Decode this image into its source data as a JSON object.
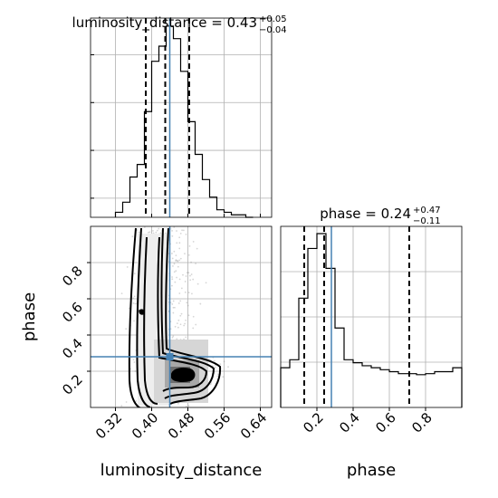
{
  "chart_data": {
    "type": "corner",
    "parameters": [
      "luminosity_distance",
      "phase"
    ],
    "truths": {
      "luminosity_distance": 0.44,
      "phase": 0.28
    },
    "luminosity_distance": {
      "title_main": "luminosity_distance = 0.43",
      "title_plus": "+0.05",
      "title_minus": "−0.04",
      "median": 0.43,
      "quantiles": [
        0.387,
        0.43,
        0.483
      ],
      "xlim": [
        0.265,
        0.665
      ],
      "ticks": [
        0.32,
        0.4,
        0.48,
        0.56,
        0.64
      ],
      "tick_labels": [
        "0.32",
        "0.40",
        "0.48",
        "0.56",
        "0.64"
      ],
      "axis_label": "luminosity_distance",
      "hist_bin_edges": [
        0.32,
        0.336,
        0.352,
        0.368,
        0.384,
        0.4,
        0.416,
        0.432,
        0.448,
        0.464,
        0.48,
        0.496,
        0.512,
        0.528,
        0.544,
        0.56,
        0.576,
        0.592,
        0.608,
        0.624
      ],
      "hist_values": [
        2,
        6,
        16,
        21,
        42,
        62,
        68,
        76,
        71,
        58,
        38,
        25,
        15,
        8,
        3,
        2,
        1,
        1,
        0
      ]
    },
    "phase": {
      "title_main": "phase = 0.24",
      "title_plus": "+0.47",
      "title_minus": "−0.11",
      "median": 0.24,
      "quantiles": [
        0.13,
        0.24,
        0.71
      ],
      "xlim": [
        0.0,
        1.0
      ],
      "ticks": [
        0.2,
        0.4,
        0.6,
        0.8
      ],
      "tick_labels": [
        "0.2",
        "0.4",
        "0.6",
        "0.8"
      ],
      "axis_label": "phase",
      "hist_bin_edges": [
        0.0,
        0.05,
        0.1,
        0.15,
        0.2,
        0.25,
        0.3,
        0.35,
        0.4,
        0.45,
        0.5,
        0.55,
        0.6,
        0.65,
        0.7,
        0.75,
        0.8,
        0.85,
        0.9,
        0.95,
        1.0
      ],
      "hist_values": [
        40,
        48,
        110,
        160,
        175,
        140,
        80,
        48,
        45,
        42,
        40,
        38,
        36,
        34,
        34,
        33,
        34,
        36,
        36,
        40
      ]
    },
    "joint": {
      "ylim": [
        0.0,
        1.0
      ],
      "yticks": [
        0.2,
        0.4,
        0.6,
        0.8
      ],
      "ytick_labels": [
        "0.2",
        "0.4",
        "0.6",
        "0.8"
      ],
      "y_axis_label": "phase",
      "density_peak": {
        "luminosity_distance": 0.48,
        "phase": 0.17
      }
    },
    "grid": true,
    "truth_color": "#4682b4"
  }
}
